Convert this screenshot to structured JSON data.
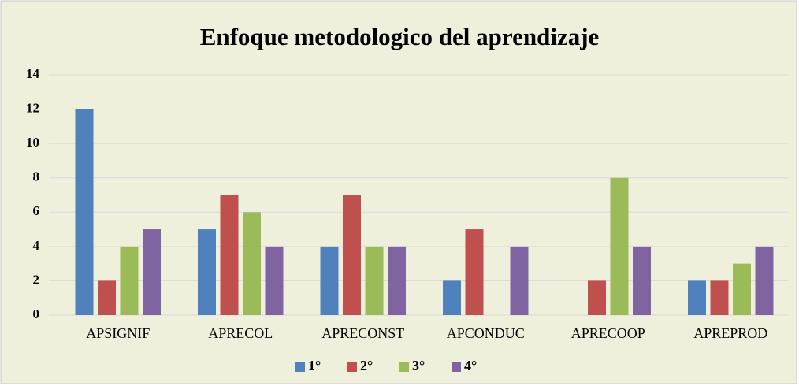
{
  "chart_data": {
    "type": "bar",
    "title": "Enfoque metodologico del aprendizaje",
    "categories": [
      "APSIGNIF",
      "APRECOL",
      "APRECONST",
      "APCONDUC",
      "APRECOOP",
      "APREPROD"
    ],
    "series": [
      {
        "name": "1°",
        "color": "#4f81bd",
        "values": [
          12,
          5,
          4,
          2,
          0,
          2
        ]
      },
      {
        "name": "2°",
        "color": "#c0504d",
        "values": [
          2,
          7,
          7,
          5,
          2,
          2
        ]
      },
      {
        "name": "3°",
        "color": "#9bbb59",
        "values": [
          4,
          6,
          4,
          0,
          8,
          3
        ]
      },
      {
        "name": "4°",
        "color": "#8064a2",
        "values": [
          5,
          4,
          4,
          4,
          4,
          4
        ]
      }
    ],
    "ylim": [
      0,
      14
    ],
    "yticks": [
      0,
      2,
      4,
      6,
      8,
      10,
      12,
      14
    ],
    "grid": true,
    "legend": "bottom"
  }
}
